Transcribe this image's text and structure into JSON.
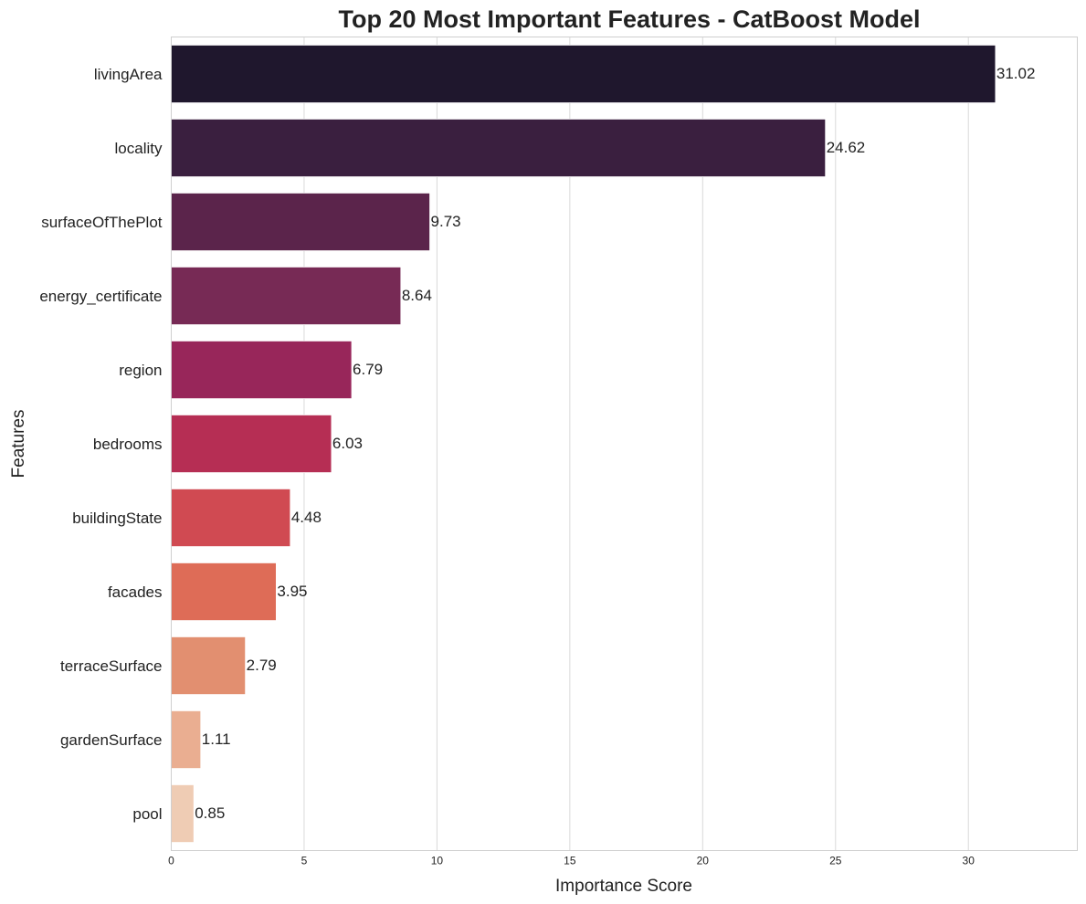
{
  "chart_data": {
    "type": "bar",
    "orientation": "horizontal",
    "title": "Top 20 Most Important Features - CatBoost Model",
    "xlabel": "Importance Score",
    "ylabel": "Features",
    "xlim": [
      0,
      34.1
    ],
    "xticks": [
      0,
      5,
      10,
      15,
      20,
      25,
      30
    ],
    "grid": "vertical",
    "categories": [
      "livingArea",
      "locality",
      "surfaceOfThePlot",
      "energy_certificate",
      "region",
      "bedrooms",
      "buildingState",
      "facades",
      "terraceSurface",
      "gardenSurface",
      "pool"
    ],
    "values": [
      31.02,
      24.62,
      9.73,
      8.64,
      6.79,
      6.03,
      4.48,
      3.95,
      2.79,
      1.11,
      0.85
    ],
    "data_labels": [
      "31.02",
      "24.62",
      "9.73",
      "8.64",
      "6.79",
      "6.03",
      "4.48",
      "3.95",
      "2.79",
      "1.11",
      "0.85"
    ],
    "colors": [
      "#1f172d",
      "#3a1f3f",
      "#5b244b",
      "#772a55",
      "#98265a",
      "#b62e54",
      "#d04a52",
      "#de6c57",
      "#e28f70",
      "#eaae91",
      "#efccb4"
    ]
  }
}
